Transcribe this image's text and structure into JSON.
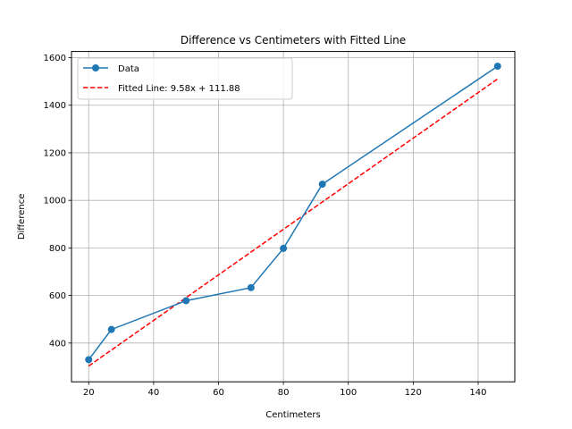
{
  "chart_data": {
    "type": "line",
    "title": "Difference vs Centimeters with Fitted Line",
    "xlabel": "Centimeters",
    "ylabel": "Difference",
    "xlim": [
      14.7,
      151.3
    ],
    "ylim": [
      237,
      1626
    ],
    "xticks": [
      20,
      40,
      60,
      80,
      100,
      120,
      140
    ],
    "yticks": [
      400,
      600,
      800,
      1000,
      1200,
      1400,
      1600
    ],
    "grid": true,
    "legend_position": "upper-left",
    "series": [
      {
        "name": "Data",
        "style": "line-with-markers",
        "color": "#1f77b4",
        "x": [
          20,
          27,
          50,
          70,
          80,
          92,
          146
        ],
        "y": [
          330,
          457,
          578,
          633,
          798,
          1068,
          1564
        ]
      },
      {
        "name": "Fitted Line: 9.58x + 111.88",
        "style": "dashed",
        "color": "#ff0000",
        "slope": 9.58,
        "intercept": 111.88,
        "x": [
          20,
          146
        ]
      }
    ]
  }
}
